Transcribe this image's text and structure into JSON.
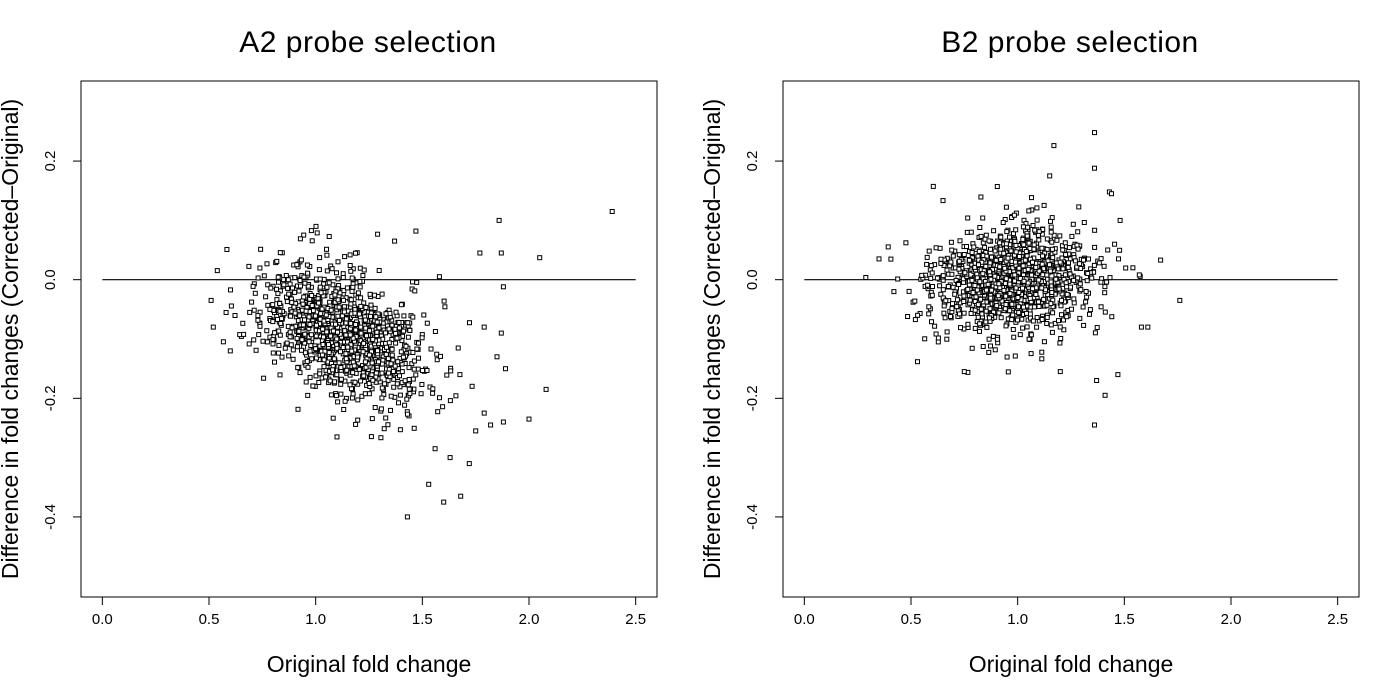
{
  "chart_data": [
    {
      "type": "scatter",
      "title": "A2 probe selection",
      "xlabel": "Original fold change",
      "ylabel": "Difference in fold changes (Corrected–Original)",
      "xlim": [
        -0.1,
        2.6
      ],
      "ylim": [
        -0.535,
        0.335
      ],
      "xticks": [
        0.0,
        0.5,
        1.0,
        1.5,
        2.0,
        2.5
      ],
      "xtick_labels": [
        "0.0",
        "0.5",
        "1.0",
        "1.5",
        "2.0",
        "2.5"
      ],
      "yticks": [
        -0.4,
        -0.2,
        0.0,
        0.2
      ],
      "ytick_labels": [
        "-0.4",
        "-0.2",
        "0.0",
        "0.2"
      ],
      "reference_line": {
        "y": 0.0,
        "x_from": 0.0,
        "x_to": 2.5
      },
      "marker": "open-square",
      "grid": false,
      "points_note_generated": true,
      "cluster": {
        "count": 1250,
        "x_mean": 1.13,
        "x_sd": 0.19,
        "y_mean": -0.09,
        "y_sd": 0.05,
        "slope": -0.12
      },
      "points": [
        {
          "x": 2.39,
          "y": 0.115
        },
        {
          "x": 1.86,
          "y": 0.1
        },
        {
          "x": 1.87,
          "y": 0.045
        },
        {
          "x": 1.77,
          "y": 0.045
        },
        {
          "x": 2.05,
          "y": 0.037
        },
        {
          "x": 1.88,
          "y": -0.012
        },
        {
          "x": 1.43,
          "y": -0.4
        },
        {
          "x": 1.53,
          "y": -0.345
        },
        {
          "x": 1.68,
          "y": -0.365
        },
        {
          "x": 1.6,
          "y": -0.375
        },
        {
          "x": 1.63,
          "y": -0.3
        },
        {
          "x": 1.72,
          "y": -0.31
        },
        {
          "x": 2.08,
          "y": -0.185
        },
        {
          "x": 2.0,
          "y": -0.235
        },
        {
          "x": 1.88,
          "y": -0.24
        },
        {
          "x": 1.79,
          "y": -0.225
        },
        {
          "x": 1.82,
          "y": -0.245
        },
        {
          "x": 1.85,
          "y": -0.13
        },
        {
          "x": 1.89,
          "y": -0.15
        },
        {
          "x": 1.79,
          "y": -0.08
        },
        {
          "x": 1.87,
          "y": -0.09
        },
        {
          "x": 1.37,
          "y": 0.065
        },
        {
          "x": 1.47,
          "y": 0.082
        },
        {
          "x": 1.58,
          "y": 0.005
        },
        {
          "x": 0.51,
          "y": -0.035
        },
        {
          "x": 0.52,
          "y": -0.08
        },
        {
          "x": 0.6,
          "y": -0.12
        },
        {
          "x": 1.1,
          "y": -0.265
        },
        {
          "x": 1.56,
          "y": -0.285
        },
        {
          "x": 1.75,
          "y": -0.255
        }
      ]
    },
    {
      "type": "scatter",
      "title": "B2 probe selection",
      "xlabel": "Original fold change",
      "ylabel": "Difference in fold changes (Corrected–Original)",
      "xlim": [
        -0.1,
        2.6
      ],
      "ylim": [
        -0.535,
        0.335
      ],
      "xticks": [
        0.0,
        0.5,
        1.0,
        1.5,
        2.0,
        2.5
      ],
      "xtick_labels": [
        "0.0",
        "0.5",
        "1.0",
        "1.5",
        "2.0",
        "2.5"
      ],
      "yticks": [
        -0.4,
        -0.2,
        0.0,
        0.2
      ],
      "ytick_labels": [
        "-0.4",
        "-0.2",
        "0.0",
        "0.2"
      ],
      "reference_line": {
        "y": 0.0,
        "x_from": 0.0,
        "x_to": 2.5
      },
      "marker": "open-square",
      "grid": false,
      "cluster": {
        "count": 1250,
        "x_mean": 0.97,
        "x_sd": 0.19,
        "y_mean": 0.0,
        "y_sd": 0.045,
        "slope": 0.04
      },
      "points": [
        {
          "x": 1.36,
          "y": 0.248
        },
        {
          "x": 1.17,
          "y": 0.226
        },
        {
          "x": 1.36,
          "y": 0.188
        },
        {
          "x": 1.15,
          "y": 0.175
        },
        {
          "x": 1.43,
          "y": 0.148
        },
        {
          "x": 1.44,
          "y": 0.145
        },
        {
          "x": 1.48,
          "y": 0.1
        },
        {
          "x": 0.35,
          "y": 0.035
        },
        {
          "x": 1.67,
          "y": 0.033
        },
        {
          "x": 1.76,
          "y": -0.035
        },
        {
          "x": 1.58,
          "y": -0.08
        },
        {
          "x": 1.61,
          "y": -0.08
        },
        {
          "x": 1.36,
          "y": -0.245
        },
        {
          "x": 1.41,
          "y": -0.195
        },
        {
          "x": 1.37,
          "y": -0.17
        },
        {
          "x": 1.47,
          "y": -0.16
        },
        {
          "x": 1.57,
          "y": 0.008
        },
        {
          "x": 1.54,
          "y": 0.02
        },
        {
          "x": 1.2,
          "y": -0.155
        },
        {
          "x": 0.75,
          "y": -0.155
        },
        {
          "x": 0.42,
          "y": -0.02
        }
      ]
    }
  ]
}
